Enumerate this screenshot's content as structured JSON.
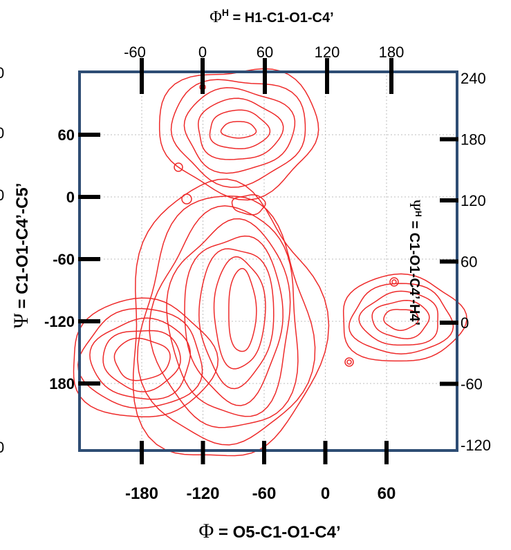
{
  "chart_data": {
    "type": "contour",
    "title": "",
    "axes": {
      "bottom": {
        "label_symbol": "Φ",
        "label_rest": " = O5-C1-O1-C4’",
        "ticks": [
          -180,
          -120,
          -60,
          0,
          60
        ],
        "range": [
          -240,
          100
        ]
      },
      "left": {
        "label_symbol": "Ψ",
        "label_rest": " = C1-O1-C4’-C5’",
        "ticks": [
          60,
          0,
          -60,
          -120,
          180
        ],
        "edge_labels": [
          "0",
          "0",
          "0",
          "0"
        ]
      },
      "top": {
        "label": "Φ",
        "label_sup": "H",
        "label_rest": " = H1-C1-O1-C4’",
        "ticks": [
          -60,
          0,
          60,
          120,
          180
        ]
      },
      "right": {
        "label": "Ψ",
        "label_sup": "H",
        "label_rest": " = C1-O1-C4’-H4’",
        "ticks": [
          240,
          180,
          120,
          60,
          0,
          -60,
          -120
        ]
      }
    },
    "grid": true,
    "contour_color": "#ee2a2a",
    "frame_color": "#2e4d74",
    "regions": [
      {
        "name": "upper",
        "center_phi": -75,
        "center_psi": 60
      },
      {
        "name": "central",
        "center_phi": -85,
        "center_psi": -140
      },
      {
        "name": "right",
        "center_phi": 75,
        "center_psi": -125
      },
      {
        "name": "left-bottom",
        "center_phi": -195,
        "center_psi": -165
      }
    ]
  }
}
